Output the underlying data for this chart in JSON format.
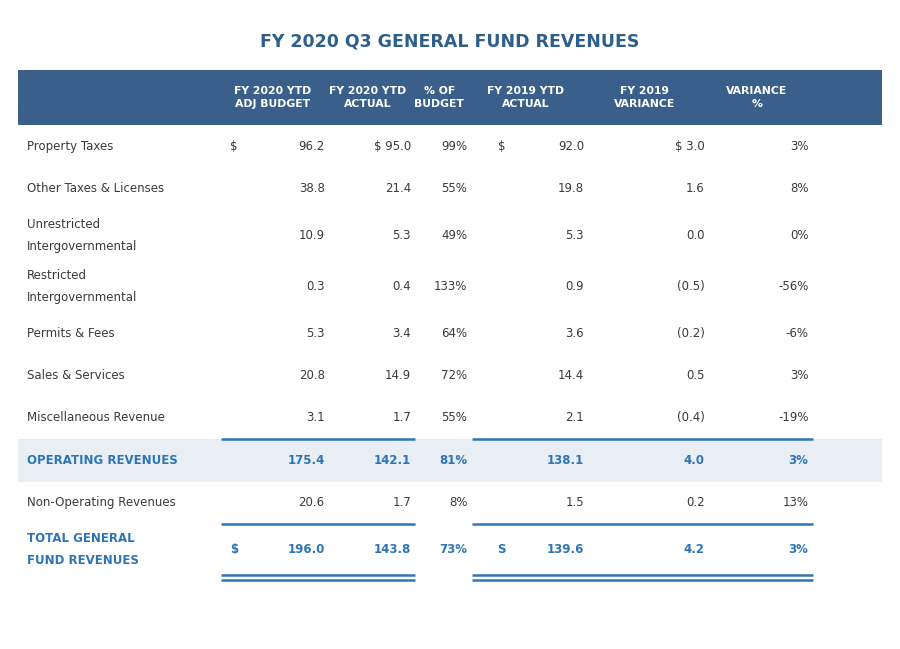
{
  "title": "FY 2020 Q3 GENERAL FUND REVENUES",
  "title_color": "#2E5F8A",
  "header_bg_color": "#3A5F8A",
  "header_text_color": "#FFFFFF",
  "operating_row_bg": "#E8EEF4",
  "body_text_color": "#3A3A3A",
  "operating_text_color": "#2E75B6",
  "line_color": "#2E75B6",
  "columns": [
    {
      "label": "FY 2020 YTD\nADJ BUDGET"
    },
    {
      "label": "FY 2020 YTD\nACTUAL"
    },
    {
      "label": "% OF\nBUDGET"
    },
    {
      "label": "FY 2019 YTD\nACTUAL"
    },
    {
      "label": "FY 2019\nVARIANCE"
    },
    {
      "label": "VARIANCE\n%"
    }
  ],
  "rows": [
    {
      "label": "Property Taxes",
      "label2": "",
      "col0_prefix": "$",
      "col3_prefix": "$",
      "values": [
        "96.2",
        "$ 95.0",
        "99%",
        "92.0",
        "$ 3.0",
        "3%"
      ],
      "type": "normal"
    },
    {
      "label": "Other Taxes & Licenses",
      "label2": "",
      "col0_prefix": "",
      "col3_prefix": "",
      "values": [
        "38.8",
        "21.4",
        "55%",
        "19.8",
        "1.6",
        "8%"
      ],
      "type": "normal"
    },
    {
      "label": "Unrestricted",
      "label2": "Intergovernmental",
      "col0_prefix": "",
      "col3_prefix": "",
      "values": [
        "10.9",
        "5.3",
        "49%",
        "5.3",
        "0.0",
        "0%"
      ],
      "type": "normal"
    },
    {
      "label": "Restricted",
      "label2": "Intergovernmental",
      "col0_prefix": "",
      "col3_prefix": "",
      "values": [
        "0.3",
        "0.4",
        "133%",
        "0.9",
        "(0.5)",
        "-56%"
      ],
      "type": "normal"
    },
    {
      "label": "Permits & Fees",
      "label2": "",
      "col0_prefix": "",
      "col3_prefix": "",
      "values": [
        "5.3",
        "3.4",
        "64%",
        "3.6",
        "(0.2)",
        "-6%"
      ],
      "type": "normal"
    },
    {
      "label": "Sales & Services",
      "label2": "",
      "col0_prefix": "",
      "col3_prefix": "",
      "values": [
        "20.8",
        "14.9",
        "72%",
        "14.4",
        "0.5",
        "3%"
      ],
      "type": "normal"
    },
    {
      "label": "Miscellaneous Revenue",
      "label2": "",
      "col0_prefix": "",
      "col3_prefix": "",
      "values": [
        "3.1",
        "1.7",
        "55%",
        "2.1",
        "(0.4)",
        "-19%"
      ],
      "type": "normal"
    },
    {
      "label": "OPERATING REVENUES",
      "label2": "",
      "col0_prefix": "",
      "col3_prefix": "",
      "values": [
        "175.4",
        "142.1",
        "81%",
        "138.1",
        "4.0",
        "3%"
      ],
      "type": "operating"
    },
    {
      "label": "Non-Operating Revenues",
      "label2": "",
      "col0_prefix": "",
      "col3_prefix": "",
      "values": [
        "20.6",
        "1.7",
        "8%",
        "1.5",
        "0.2",
        "13%"
      ],
      "type": "normal"
    },
    {
      "label": "TOTAL GENERAL",
      "label2": "FUND REVENUES",
      "col0_prefix": "$",
      "col3_prefix": "S",
      "values": [
        "196.0",
        "143.8",
        "73%",
        "139.6",
        "4.2",
        "3%"
      ],
      "type": "total"
    }
  ],
  "figsize": [
    9.0,
    6.49
  ],
  "dpi": 100
}
